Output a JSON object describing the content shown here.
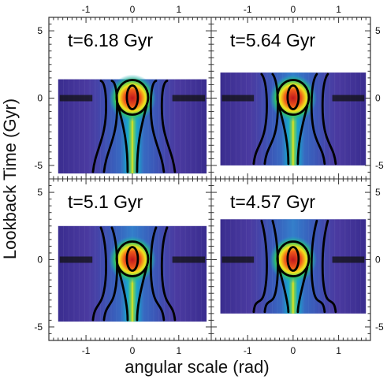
{
  "chart_data": {
    "type": "heatmap",
    "xlabel": "angular scale (rad)",
    "ylabel": "Lookback Time (Gyr)",
    "xlim": [
      -1.8,
      1.7
    ],
    "ylim": [
      -6,
      6
    ],
    "x_ticks": [
      -1,
      0,
      1
    ],
    "x_tick_labels": [
      "-1",
      "0",
      "1"
    ],
    "y_ticks": [
      -5,
      0,
      5
    ],
    "y_tick_labels": [
      "-5",
      "0",
      "5"
    ],
    "grid": false,
    "colormap": [
      "#3a2d8f",
      "#2f63c4",
      "#17a6c9",
      "#2ec06a",
      "#f2e51c",
      "#e23020"
    ],
    "panels": [
      {
        "title": "t=6.18 Gyr",
        "position": "top-left",
        "data_x_range": [
          -1.6,
          1.6
        ],
        "data_y_range": [
          -5.6,
          1.4
        ]
      },
      {
        "title": "t=5.64 Gyr",
        "position": "top-right",
        "data_x_range": [
          -1.6,
          1.6
        ],
        "data_y_range": [
          -5.0,
          1.9
        ]
      },
      {
        "title": "t=5.1 Gyr",
        "position": "bottom-left",
        "data_x_range": [
          -1.6,
          1.6
        ],
        "data_y_range": [
          -4.6,
          2.5
        ]
      },
      {
        "title": "t=4.57 Gyr",
        "position": "bottom-right",
        "data_x_range": [
          -1.6,
          1.6
        ],
        "data_y_range": [
          -4.0,
          3.0
        ]
      }
    ]
  }
}
